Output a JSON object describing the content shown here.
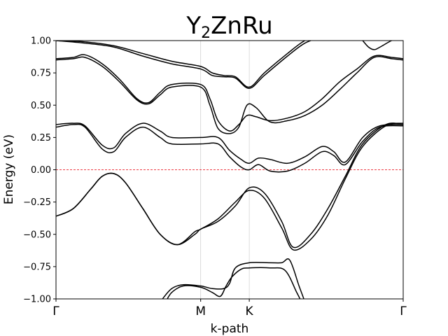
{
  "chart_data": {
    "type": "line",
    "title": "Y",
    "title_subscript": "2",
    "title_suffix": "ZnRu",
    "xlabel": "k-path",
    "ylabel": "Energy (eV)",
    "ylim": [
      -1.0,
      1.0
    ],
    "xlim": [
      0,
      3
    ],
    "yticks": [
      "−1.00",
      "−0.75",
      "−0.50",
      "−0.25",
      "0.00",
      "0.25",
      "0.50",
      "0.75",
      "1.00"
    ],
    "ytick_values": [
      -1.0,
      -0.75,
      -0.5,
      -0.25,
      0.0,
      0.25,
      0.5,
      0.75,
      1.0
    ],
    "kpoints": [
      {
        "label": "Γ",
        "x": 0
      },
      {
        "label": "M",
        "x": 1.25
      },
      {
        "label": "K",
        "x": 1.67
      },
      {
        "label": "Γ",
        "x": 3
      }
    ],
    "fermi_level": 0.0,
    "fermi_color": "#e8000b",
    "vertical_line_color": "#d3d3d3",
    "grid": false,
    "series": [
      {
        "x": [
          0,
          0.25,
          0.5,
          0.75,
          1.0,
          1.25,
          1.35,
          1.45,
          1.55,
          1.67,
          1.8,
          2.0,
          2.15,
          2.3
        ],
        "values": [
          1.0,
          0.99,
          0.96,
          0.9,
          0.84,
          0.8,
          0.75,
          0.73,
          0.72,
          0.64,
          0.75,
          0.9,
          1.0,
          1.05
        ]
      },
      {
        "x": [
          0,
          0.25,
          0.5,
          0.75,
          1.0,
          1.25,
          1.35,
          1.45,
          1.55,
          1.67,
          1.8,
          2.0,
          2.15,
          2.3
        ],
        "values": [
          1.0,
          0.98,
          0.95,
          0.88,
          0.82,
          0.78,
          0.73,
          0.72,
          0.71,
          0.63,
          0.73,
          0.88,
          0.98,
          1.03
        ]
      },
      {
        "x": [
          2.6,
          2.65,
          2.7,
          2.75,
          2.8,
          2.9,
          3.0
        ],
        "values": [
          1.05,
          1.0,
          0.95,
          0.93,
          0.95,
          1.0,
          1.03
        ]
      },
      {
        "x": [
          0,
          0.15,
          0.25,
          0.4,
          0.55,
          0.7,
          0.8,
          0.9,
          1.0,
          1.25,
          1.33,
          1.4,
          1.5,
          1.58,
          1.65,
          1.73,
          1.85,
          2.0,
          2.15,
          2.3,
          2.45,
          2.6,
          2.75,
          2.9,
          3.0
        ],
        "values": [
          0.86,
          0.87,
          0.89,
          0.82,
          0.7,
          0.55,
          0.52,
          0.6,
          0.66,
          0.66,
          0.55,
          0.38,
          0.3,
          0.35,
          0.42,
          0.41,
          0.38,
          0.4,
          0.45,
          0.55,
          0.68,
          0.78,
          0.88,
          0.87,
          0.86
        ]
      },
      {
        "x": [
          0,
          0.15,
          0.25,
          0.4,
          0.55,
          0.7,
          0.8,
          0.9,
          1.0,
          1.25,
          1.33,
          1.4,
          1.5,
          1.58,
          1.65,
          1.73,
          1.85,
          2.0,
          2.15,
          2.3,
          2.45,
          2.6,
          2.75,
          2.9,
          3.0
        ],
        "values": [
          0.85,
          0.86,
          0.87,
          0.8,
          0.68,
          0.54,
          0.51,
          0.58,
          0.64,
          0.64,
          0.5,
          0.32,
          0.28,
          0.33,
          0.5,
          0.48,
          0.37,
          0.38,
          0.42,
          0.5,
          0.62,
          0.75,
          0.87,
          0.86,
          0.85
        ]
      },
      {
        "x": [
          0,
          0.15,
          0.25,
          0.4,
          0.5,
          0.6,
          0.75,
          0.9,
          1.0,
          1.25,
          1.4,
          1.5,
          1.6,
          1.67,
          1.75,
          1.85,
          2.0,
          2.15,
          2.3,
          2.4,
          2.5,
          2.65,
          2.8,
          3.0
        ],
        "values": [
          0.35,
          0.36,
          0.34,
          0.19,
          0.17,
          0.28,
          0.36,
          0.3,
          0.25,
          0.25,
          0.25,
          0.15,
          0.08,
          0.05,
          0.09,
          0.08,
          0.05,
          0.1,
          0.18,
          0.14,
          0.06,
          0.25,
          0.34,
          0.35
        ]
      },
      {
        "x": [
          0,
          0.15,
          0.25,
          0.4,
          0.5,
          0.6,
          0.75,
          0.9,
          1.0,
          1.25,
          1.4,
          1.5,
          1.6,
          1.67,
          1.75,
          1.85,
          2.0,
          2.15,
          2.3,
          2.4,
          2.5,
          2.65,
          2.8,
          3.0
        ],
        "values": [
          0.33,
          0.35,
          0.33,
          0.16,
          0.14,
          0.25,
          0.33,
          0.25,
          0.2,
          0.2,
          0.2,
          0.1,
          0.02,
          0.0,
          0.04,
          -0.01,
          -0.01,
          0.05,
          0.14,
          0.11,
          0.04,
          0.22,
          0.33,
          0.34
        ]
      },
      {
        "x": [
          0,
          0.15,
          0.3,
          0.4,
          0.5,
          0.6,
          0.75,
          0.9,
          1.05,
          1.2,
          1.25,
          1.4,
          1.55,
          1.67,
          1.8,
          1.95,
          2.05,
          2.2,
          2.35,
          2.5,
          2.65,
          2.85,
          3.0
        ],
        "values": [
          -0.36,
          -0.3,
          -0.15,
          -0.05,
          -0.03,
          -0.1,
          -0.3,
          -0.5,
          -0.58,
          -0.5,
          -0.46,
          -0.4,
          -0.28,
          -0.14,
          -0.18,
          -0.4,
          -0.6,
          -0.5,
          -0.3,
          -0.05,
          0.2,
          0.35,
          0.35
        ]
      },
      {
        "x": [
          0,
          0.15,
          0.3,
          0.4,
          0.5,
          0.6,
          0.75,
          0.9,
          1.05,
          1.2,
          1.25,
          1.4,
          1.55,
          1.67,
          1.8,
          1.95,
          2.05,
          2.2,
          2.35,
          2.5,
          2.65,
          2.85,
          3.0
        ],
        "values": [
          -0.36,
          -0.3,
          -0.15,
          -0.05,
          -0.03,
          -0.1,
          -0.3,
          -0.5,
          -0.58,
          -0.48,
          -0.46,
          -0.38,
          -0.25,
          -0.16,
          -0.22,
          -0.45,
          -0.62,
          -0.54,
          -0.35,
          -0.07,
          0.18,
          0.34,
          0.36
        ]
      },
      {
        "x": [
          0.92,
          1.0,
          1.1,
          1.25,
          1.35,
          1.45,
          1.5,
          1.55,
          1.67,
          1.85,
          1.95,
          2.02,
          2.1,
          2.15
        ],
        "values": [
          -1.0,
          -0.92,
          -0.89,
          -0.9,
          -0.92,
          -0.92,
          -0.88,
          -0.76,
          -0.72,
          -0.72,
          -0.72,
          -0.7,
          -0.9,
          -1.02
        ]
      },
      {
        "x": [
          0.95,
          1.0,
          1.1,
          1.25,
          1.35,
          1.42,
          1.47,
          1.52,
          1.6,
          1.67,
          1.85,
          1.98,
          2.08,
          2.12
        ],
        "values": [
          -1.02,
          -0.95,
          -0.9,
          -0.91,
          -0.95,
          -0.98,
          -0.9,
          -0.83,
          -0.77,
          -0.76,
          -0.76,
          -0.78,
          -0.95,
          -1.02
        ]
      }
    ]
  }
}
